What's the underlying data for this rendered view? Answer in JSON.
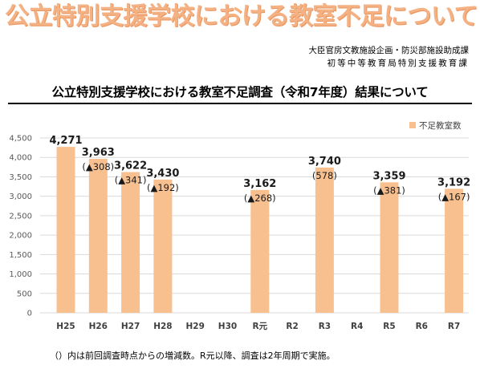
{
  "header": {
    "title": "公立特別支援学校における教室不足について",
    "department_line1": "大臣官房文教施設企画・防災部施設助成課",
    "department_line2": "初等中等教育局特別支援教育課"
  },
  "chart_data": {
    "type": "bar",
    "title": "公立特別支援学校における教室不足調査（令和7年度）結果について",
    "xlabel": "",
    "ylabel": "",
    "ylim": [
      0,
      4500
    ],
    "yticks": [
      "0",
      "500",
      "1,000",
      "1,500",
      "2,000",
      "2,500",
      "3,000",
      "3,500",
      "4,000",
      "4,500"
    ],
    "grid": true,
    "legend_position": "top-right",
    "series": [
      {
        "name": "不足教室数",
        "color": "#f8c08f",
        "values": [
          4271,
          3963,
          3622,
          3430,
          null,
          null,
          3162,
          null,
          3740,
          null,
          3359,
          null,
          3192
        ]
      }
    ],
    "categories": [
      "H25",
      "H26",
      "H27",
      "H28",
      "H29",
      "H30",
      "R元",
      "R2",
      "R3",
      "R4",
      "R5",
      "R6",
      "R7"
    ],
    "value_labels": [
      "4,271",
      "3,963",
      "3,622",
      "3,430",
      "",
      "",
      "3,162",
      "",
      "3,740",
      "",
      "3,359",
      "",
      "3,192"
    ],
    "change_labels": [
      "",
      "(▲308)",
      "(▲341)",
      "(▲192)",
      "",
      "",
      "(▲268)",
      "",
      "(578)",
      "",
      "(▲381)",
      "",
      "(▲167)"
    ]
  },
  "footnote": "（）内は前回調査時点からの増減数。R元以降、調査は2年周期で実施。"
}
